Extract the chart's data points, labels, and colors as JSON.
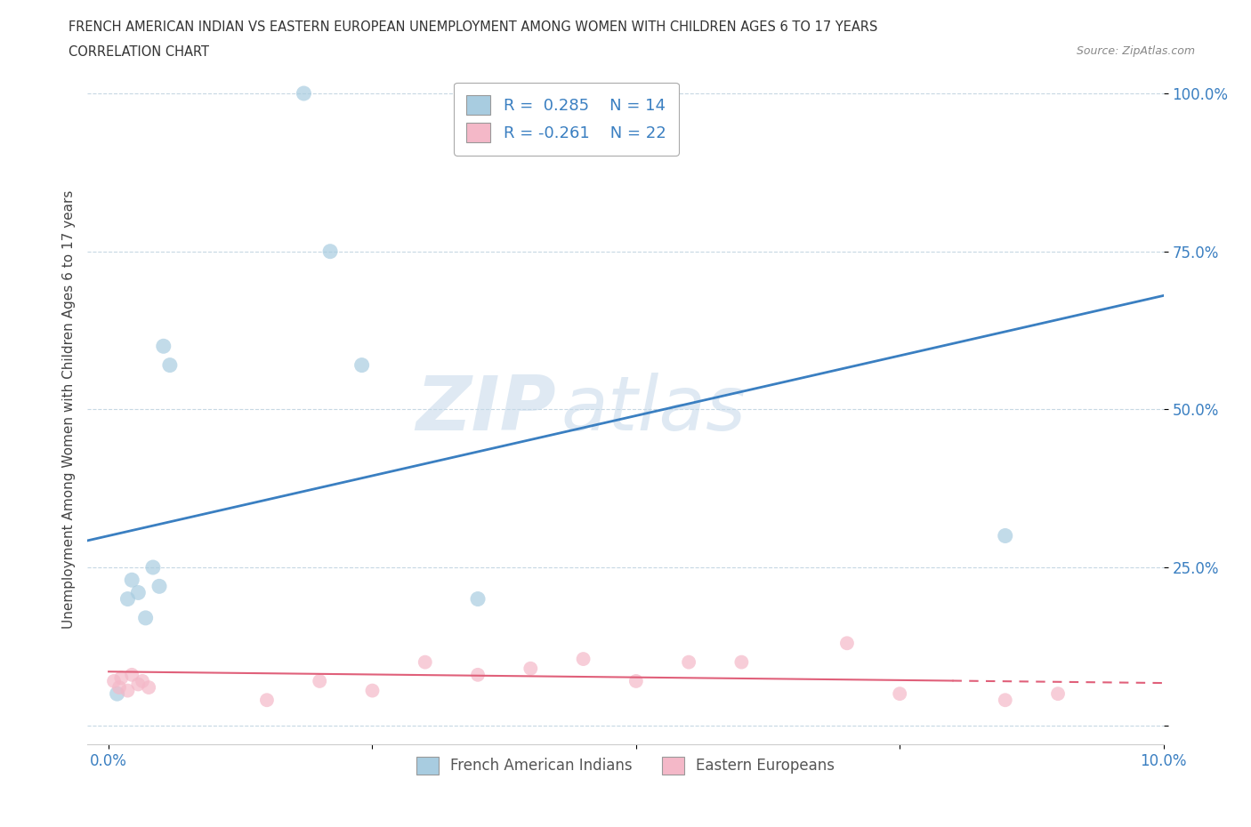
{
  "title_line1": "FRENCH AMERICAN INDIAN VS EASTERN EUROPEAN UNEMPLOYMENT AMONG WOMEN WITH CHILDREN AGES 6 TO 17 YEARS",
  "title_line2": "CORRELATION CHART",
  "source": "Source: ZipAtlas.com",
  "ylabel": "Unemployment Among Women with Children Ages 6 to 17 years",
  "blue_color": "#a8cce0",
  "blue_line_color": "#3a7fc1",
  "pink_color": "#f4b8c8",
  "pink_line_color": "#e0607a",
  "watermark_zip": "ZIP",
  "watermark_atlas": "atlas",
  "legend_R_blue": "R =  0.285",
  "legend_N_blue": "N = 14",
  "legend_R_pink": "R = -0.261",
  "legend_N_pink": "N = 22",
  "blue_x": [
    0.18,
    0.22,
    0.28,
    0.35,
    0.42,
    0.48,
    0.52,
    0.58,
    1.85,
    2.1,
    2.4,
    3.5,
    8.5,
    0.08
  ],
  "blue_y": [
    20.0,
    23.0,
    21.0,
    17.0,
    25.0,
    22.0,
    60.0,
    57.0,
    100.0,
    75.0,
    57.0,
    20.0,
    30.0,
    5.0
  ],
  "pink_x": [
    0.05,
    0.1,
    0.12,
    0.18,
    0.22,
    0.28,
    0.32,
    0.38,
    1.5,
    2.0,
    2.5,
    3.0,
    3.5,
    4.0,
    4.5,
    5.0,
    5.5,
    6.0,
    7.0,
    7.5,
    8.5,
    9.0
  ],
  "pink_y": [
    7.0,
    6.0,
    7.5,
    5.5,
    8.0,
    6.5,
    7.0,
    6.0,
    4.0,
    7.0,
    5.5,
    10.0,
    8.0,
    9.0,
    10.5,
    7.0,
    10.0,
    10.0,
    13.0,
    5.0,
    4.0,
    5.0
  ],
  "blue_intercept": 30.0,
  "blue_slope": 3.8,
  "pink_intercept": 8.5,
  "pink_slope": -0.18,
  "pink_solid_end": 8.0,
  "xlim_left": -0.2,
  "xlim_right": 10.0,
  "ylim_bottom": -3.0,
  "ylim_top": 103.0
}
